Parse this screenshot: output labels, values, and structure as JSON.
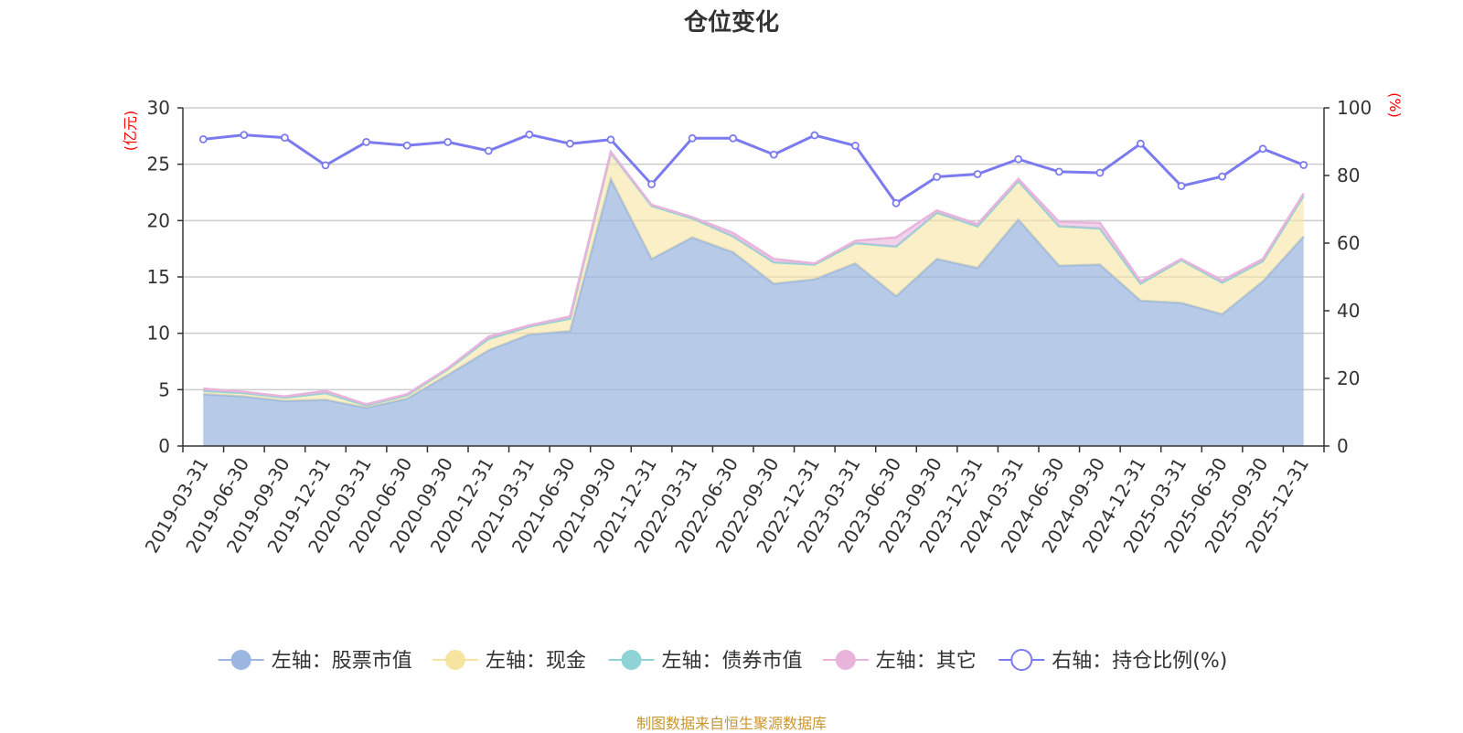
{
  "title": "仓位变化",
  "source": "制图数据来自恒生聚源数据库",
  "colors": {
    "stock": "#9bb7e0",
    "cash": "#f7e4a1",
    "bond": "#8fd3d6",
    "other": "#e8b4dc",
    "ratio": "#7b7bef",
    "axis_unit": "#ff0000"
  },
  "chart_data": {
    "type": "area",
    "title": "仓位变化",
    "left_axis": {
      "unit": "(亿元)",
      "ylim": [
        0,
        30
      ],
      "ticks": [
        "0",
        "5",
        "10",
        "15",
        "20",
        "25",
        "30"
      ]
    },
    "right_axis": {
      "unit": "(%)",
      "ylim": [
        0,
        100
      ],
      "ticks": [
        "0",
        "20",
        "40",
        "60",
        "80",
        "100"
      ]
    },
    "categories": [
      "2019-03-31",
      "2019-06-30",
      "2019-09-30",
      "2019-12-31",
      "2020-03-31",
      "2020-06-30",
      "2020-09-30",
      "2020-12-31",
      "2021-03-31",
      "2021-06-30",
      "2021-09-30",
      "2021-12-31",
      "2022-03-31",
      "2022-06-30",
      "2022-09-30",
      "2022-12-31",
      "2023-03-31",
      "2023-06-30",
      "2023-09-30",
      "2023-12-31",
      "2024-03-31",
      "2024-06-30",
      "2024-09-30",
      "2024-12-31",
      "2025-03-31",
      "2025-06-30",
      "2025-09-30",
      "2025-12-31"
    ],
    "series": [
      {
        "name": "左轴：股票市值",
        "axis": "left",
        "stack": true,
        "color_key": "stock",
        "values": [
          4.6,
          4.4,
          4.0,
          4.1,
          3.4,
          4.2,
          6.3,
          8.5,
          9.9,
          10.2,
          23.7,
          16.6,
          18.5,
          17.2,
          14.4,
          14.8,
          16.2,
          13.3,
          16.6,
          15.8,
          20.1,
          16.0,
          16.1,
          12.9,
          12.7,
          11.7,
          14.6,
          18.6
        ]
      },
      {
        "name": "左轴：现金",
        "axis": "left",
        "stack": true,
        "color_key": "cash",
        "values": [
          0.3,
          0.3,
          0.3,
          0.6,
          0.2,
          0.3,
          0.5,
          1.0,
          0.7,
          1.1,
          2.3,
          4.7,
          1.7,
          1.4,
          1.9,
          1.3,
          1.8,
          4.4,
          4.1,
          3.7,
          3.4,
          3.5,
          3.2,
          1.5,
          3.8,
          2.8,
          1.8,
          3.6
        ]
      },
      {
        "name": "左轴：债券市值",
        "axis": "left",
        "stack": true,
        "color_key": "bond",
        "values": [
          0,
          0,
          0,
          0,
          0,
          0,
          0,
          0,
          0,
          0,
          0,
          0,
          0,
          0,
          0,
          0,
          0,
          0,
          0,
          0,
          0,
          0,
          0,
          0,
          0,
          0,
          0,
          0
        ]
      },
      {
        "name": "左轴：其它",
        "axis": "left",
        "stack": true,
        "color_key": "other",
        "values": [
          0.2,
          0.1,
          0.1,
          0.2,
          0.1,
          0.1,
          0.1,
          0.2,
          0.1,
          0.2,
          0.1,
          0.1,
          0.1,
          0.3,
          0.3,
          0.1,
          0.2,
          0.8,
          0.2,
          0.2,
          0.2,
          0.4,
          0.5,
          0.2,
          0.1,
          0.2,
          0.2,
          0.2
        ]
      },
      {
        "name": "右轴：持仓比例(%)",
        "axis": "right",
        "stack": false,
        "color_key": "ratio",
        "type": "line",
        "values": [
          90.7,
          92.0,
          91.2,
          83.0,
          89.9,
          88.9,
          89.9,
          87.3,
          92.1,
          89.4,
          90.6,
          77.4,
          91.0,
          91.0,
          86.2,
          91.9,
          88.8,
          71.8,
          79.6,
          80.4,
          84.8,
          81.1,
          80.8,
          89.4,
          76.9,
          79.7,
          87.9,
          83.1
        ]
      }
    ],
    "legend_position": "bottom-center",
    "grid": true
  }
}
